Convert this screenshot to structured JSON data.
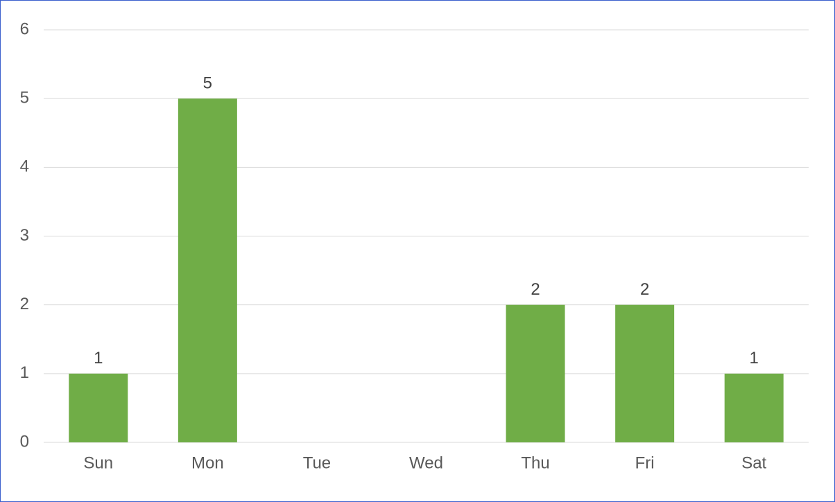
{
  "chart_data": {
    "type": "bar",
    "categories": [
      "Sun",
      "Mon",
      "Tue",
      "Wed",
      "Thu",
      "Fri",
      "Sat"
    ],
    "values": [
      1,
      5,
      null,
      null,
      2,
      2,
      1
    ],
    "color": "#70ad47",
    "ylim": [
      0,
      6
    ],
    "yticks": [
      0,
      1,
      2,
      3,
      4,
      5,
      6
    ],
    "grid": true,
    "data_labels": true
  }
}
